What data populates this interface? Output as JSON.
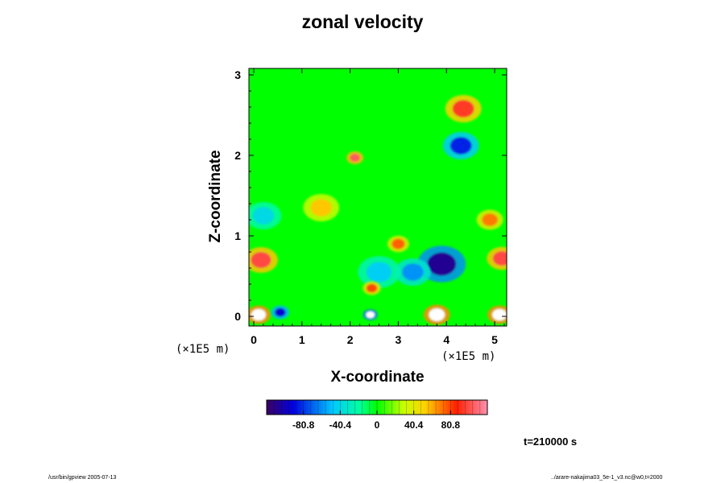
{
  "chart_data": {
    "type": "heatmap",
    "title": "zonal velocity",
    "xlabel": "X-coordinate",
    "ylabel": "Z-coordinate",
    "x_unit": "(×1E5 m)",
    "y_unit": "(×1E5 m)",
    "xlim": [
      -0.1,
      5.25
    ],
    "ylim": [
      -0.12,
      3.08
    ],
    "x_ticks": [
      "0",
      "1",
      "2",
      "3",
      "4",
      "5"
    ],
    "y_ticks": [
      "0",
      "1",
      "2",
      "3"
    ],
    "colorbar": {
      "range": [
        -121.2,
        121.2
      ],
      "tick_values": [
        -80.8,
        -40.4,
        0,
        40.4,
        80.8
      ],
      "tick_labels": [
        "-80.8",
        "-40.4",
        "0",
        "40.4",
        "80.8"
      ]
    },
    "features": [
      {
        "x": 0.15,
        "z": 0.7,
        "value": 100,
        "size": 0.28
      },
      {
        "x": 5.15,
        "z": 0.72,
        "value": 100,
        "size": 0.25
      },
      {
        "x": 3.9,
        "z": 0.65,
        "value": -110,
        "size": 0.4
      },
      {
        "x": 3.3,
        "z": 0.55,
        "value": -60,
        "size": 0.3
      },
      {
        "x": 4.3,
        "z": 2.12,
        "value": -85,
        "size": 0.3
      },
      {
        "x": 2.6,
        "z": 0.55,
        "value": -45,
        "size": 0.35
      },
      {
        "x": 2.1,
        "z": 1.97,
        "value": 105,
        "size": 0.14
      },
      {
        "x": 4.35,
        "z": 2.58,
        "value": 95,
        "size": 0.3
      },
      {
        "x": 2.45,
        "z": 0.35,
        "value": 80,
        "size": 0.15
      },
      {
        "x": 3.0,
        "z": 0.9,
        "value": 75,
        "size": 0.18
      },
      {
        "x": 4.9,
        "z": 1.2,
        "value": 70,
        "size": 0.22
      },
      {
        "x": 0.2,
        "z": 1.25,
        "value": -40,
        "size": 0.3
      },
      {
        "x": 1.4,
        "z": 1.35,
        "value": 55,
        "size": 0.3
      },
      {
        "x": 3.8,
        "z": 0.02,
        "value": 121,
        "size": 0.22
      },
      {
        "x": 0.1,
        "z": 0.02,
        "value": 121,
        "size": 0.2
      },
      {
        "x": 5.1,
        "z": 0.02,
        "value": 121,
        "size": 0.2
      },
      {
        "x": 2.42,
        "z": 0.02,
        "value": -121,
        "size": 0.12
      },
      {
        "x": 0.55,
        "z": 0.05,
        "value": -95,
        "size": 0.15
      }
    ]
  },
  "time_label": "t=210000 s",
  "footer_left": "/usr/bin/gpview 2005-07-13",
  "footer_right": "../arare-nakajima03_5e-1_v3.nc@w0,t=2000"
}
